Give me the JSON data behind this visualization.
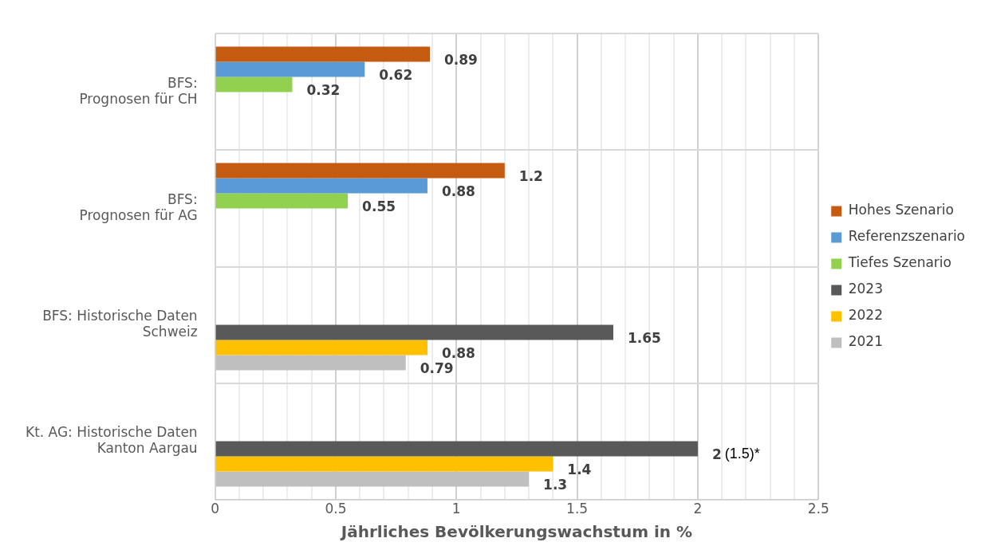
{
  "chart_data": {
    "type": "bar",
    "orientation": "horizontal",
    "xlabel": "Jährliches Bevölkerungswachstum in %",
    "categories": [
      "BFS:\nPrognosen für CH",
      "BFS:\nPrognosen für AG",
      "BFS: Historische Daten\nSchweiz",
      "Kt. AG: Historische Daten\nKanton Aargau"
    ],
    "series": [
      {
        "name": "Hohes Szenario",
        "color": "#c55a11",
        "values": [
          0.89,
          1.2,
          null,
          null
        ]
      },
      {
        "name": "Referenzszenario",
        "color": "#5b9bd5",
        "values": [
          0.62,
          0.88,
          null,
          null
        ]
      },
      {
        "name": "Tiefes Szenario",
        "color": "#92d050",
        "values": [
          0.32,
          0.55,
          null,
          null
        ]
      },
      {
        "name": "2023",
        "color": "#595959",
        "values": [
          null,
          null,
          1.65,
          2
        ]
      },
      {
        "name": "2022",
        "color": "#ffc000",
        "values": [
          null,
          null,
          0.88,
          1.4
        ]
      },
      {
        "name": "2021",
        "color": "#bfbfbf",
        "values": [
          null,
          null,
          0.79,
          1.3
        ]
      }
    ],
    "xlim": [
      0,
      2.5
    ],
    "xticks": [
      0,
      {
        "value": 0.1,
        "label": null
      },
      {
        "value": 0.2,
        "label": null
      },
      {
        "value": 0.3,
        "label": null
      },
      {
        "value": 0.4,
        "label": null
      },
      0.5,
      {
        "value": 0.6,
        "label": null
      },
      {
        "value": 0.7,
        "label": null
      },
      {
        "value": 0.8,
        "label": null
      },
      {
        "value": 0.9,
        "label": null
      },
      1,
      {
        "value": 1.1,
        "label": null
      },
      {
        "value": 1.2,
        "label": null
      },
      {
        "value": 1.3,
        "label": null
      },
      {
        "value": 1.4,
        "label": null
      },
      1.5,
      {
        "value": 1.6,
        "label": null
      },
      {
        "value": 1.7,
        "label": null
      },
      {
        "value": 1.8,
        "label": null
      },
      {
        "value": 1.9,
        "label": null
      },
      2,
      {
        "value": 2.1,
        "label": null
      },
      {
        "value": 2.2,
        "label": null
      },
      {
        "value": 2.3,
        "label": null
      },
      {
        "value": 2.4,
        "label": null
      },
      2.5
    ],
    "grid": true,
    "legend": "right",
    "data_labels": true,
    "annotations": [
      {
        "text": "(1.5)*",
        "x": 2,
        "y": "Kt. AG: Historische Daten\nKanton Aargau"
      }
    ]
  }
}
